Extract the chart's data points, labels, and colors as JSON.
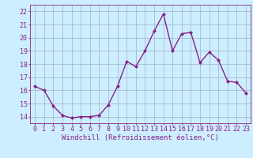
{
  "x": [
    0,
    1,
    2,
    3,
    4,
    5,
    6,
    7,
    8,
    9,
    10,
    11,
    12,
    13,
    14,
    15,
    16,
    17,
    18,
    19,
    20,
    21,
    22,
    23
  ],
  "y": [
    16.3,
    16.0,
    14.8,
    14.1,
    13.9,
    14.0,
    14.0,
    14.1,
    14.9,
    16.3,
    18.2,
    17.8,
    19.0,
    20.5,
    21.8,
    19.0,
    20.3,
    20.4,
    18.1,
    18.9,
    18.3,
    16.7,
    16.6,
    15.8
  ],
  "line_color": "#882288",
  "marker": "D",
  "marker_size": 2.0,
  "line_width": 1.0,
  "bg_color": "#cceeff",
  "grid_color": "#aabbcc",
  "xlabel": "Windchill (Refroidissement éolien,°C)",
  "xlabel_fontsize": 6.5,
  "ylabel_ticks": [
    14,
    15,
    16,
    17,
    18,
    19,
    20,
    21,
    22
  ],
  "xlim": [
    -0.5,
    23.5
  ],
  "ylim": [
    13.5,
    22.5
  ],
  "tick_fontsize": 6.0
}
